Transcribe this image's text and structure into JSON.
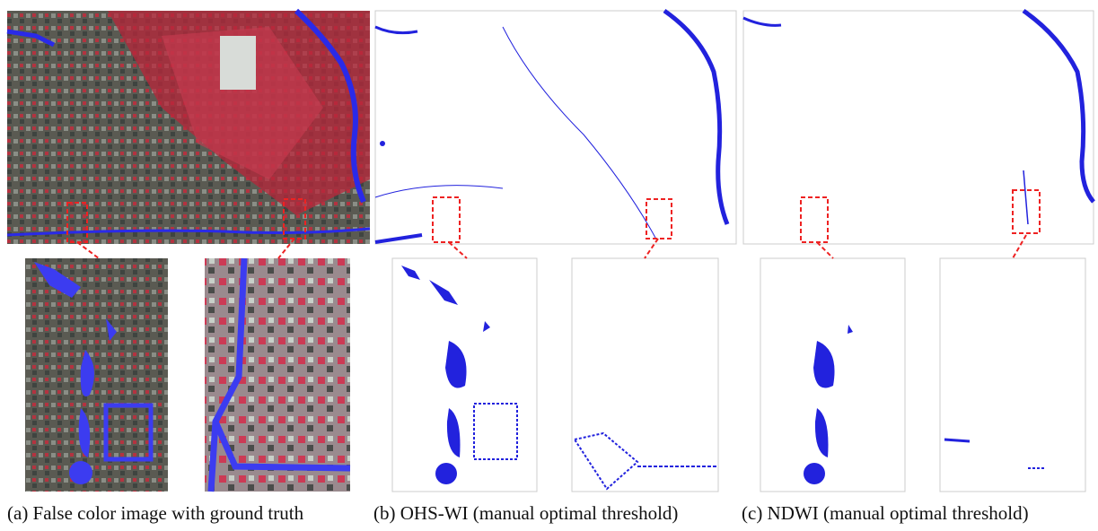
{
  "captions": [
    "(a) False color image with ground truth",
    "(b) OHS-WI (manual optimal threshold)",
    "(c) NDWI (manual optimal threshold)"
  ]
}
